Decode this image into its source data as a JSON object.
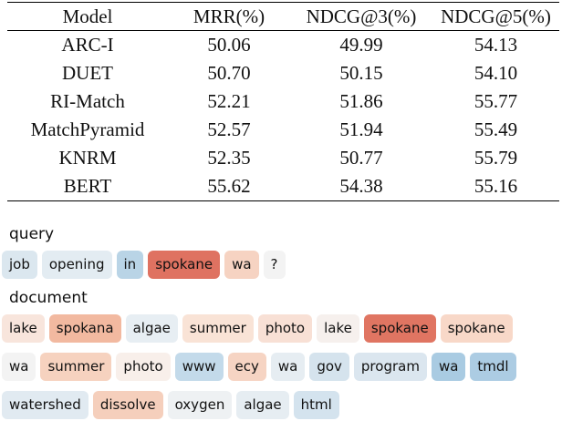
{
  "table": {
    "headers": [
      "Model",
      "MRR(%)",
      "NDCG@3(%)",
      "NDCG@5(%)"
    ],
    "rows": [
      [
        "ARC-I",
        "50.06",
        "49.99",
        "54.13"
      ],
      [
        "DUET",
        "50.70",
        "50.15",
        "54.10"
      ],
      [
        "RI-Match",
        "52.21",
        "51.86",
        "55.77"
      ],
      [
        "MatchPyramid",
        "52.57",
        "51.94",
        "55.49"
      ],
      [
        "KNRM",
        "52.35",
        "50.77",
        "55.79"
      ],
      [
        "BERT",
        "55.62",
        "54.38",
        "55.16"
      ]
    ]
  },
  "query": {
    "label": "query",
    "tokens": [
      {
        "text": "job",
        "color": "#dbe7ef"
      },
      {
        "text": "opening",
        "color": "#e3ecf2"
      },
      {
        "text": "in",
        "color": "#b9d4e6"
      },
      {
        "text": "spokane",
        "color": "#df7261"
      },
      {
        "text": "wa",
        "color": "#f6d3c2"
      },
      {
        "text": "?",
        "color": "#f3f3f3"
      }
    ]
  },
  "document": {
    "label": "document",
    "rows": [
      [
        {
          "text": "lake",
          "color": "#f8e5dc"
        },
        {
          "text": "spokana",
          "color": "#f2b9a0"
        },
        {
          "text": "algae",
          "color": "#e7eef3"
        },
        {
          "text": "summer",
          "color": "#f9e3d6"
        },
        {
          "text": "photo",
          "color": "#f8e0d5"
        },
        {
          "text": "lake",
          "color": "#f6f0ed"
        },
        {
          "text": "spokane",
          "color": "#e07562"
        },
        {
          "text": "spokane",
          "color": "#f8d8c8"
        }
      ],
      [
        {
          "text": "wa",
          "color": "#f3f3f3"
        },
        {
          "text": "summer",
          "color": "#f6d2bf"
        },
        {
          "text": "photo",
          "color": "#f8efea"
        },
        {
          "text": "www",
          "color": "#c3daea"
        },
        {
          "text": "ecy",
          "color": "#f6d4c3"
        },
        {
          "text": "wa",
          "color": "#e6edf2"
        },
        {
          "text": "gov",
          "color": "#d5e3ed"
        },
        {
          "text": "program",
          "color": "#dbe6ef"
        },
        {
          "text": "wa",
          "color": "#a9cbe2"
        },
        {
          "text": "tmdl",
          "color": "#accce3"
        }
      ],
      [
        {
          "text": "watershed",
          "color": "#e1eaf1"
        },
        {
          "text": "dissolve",
          "color": "#f5cfbc"
        },
        {
          "text": "oxygen",
          "color": "#eef1f3"
        },
        {
          "text": "algae",
          "color": "#e6edf2"
        },
        {
          "text": "html",
          "color": "#d4e3ee"
        }
      ]
    ]
  }
}
